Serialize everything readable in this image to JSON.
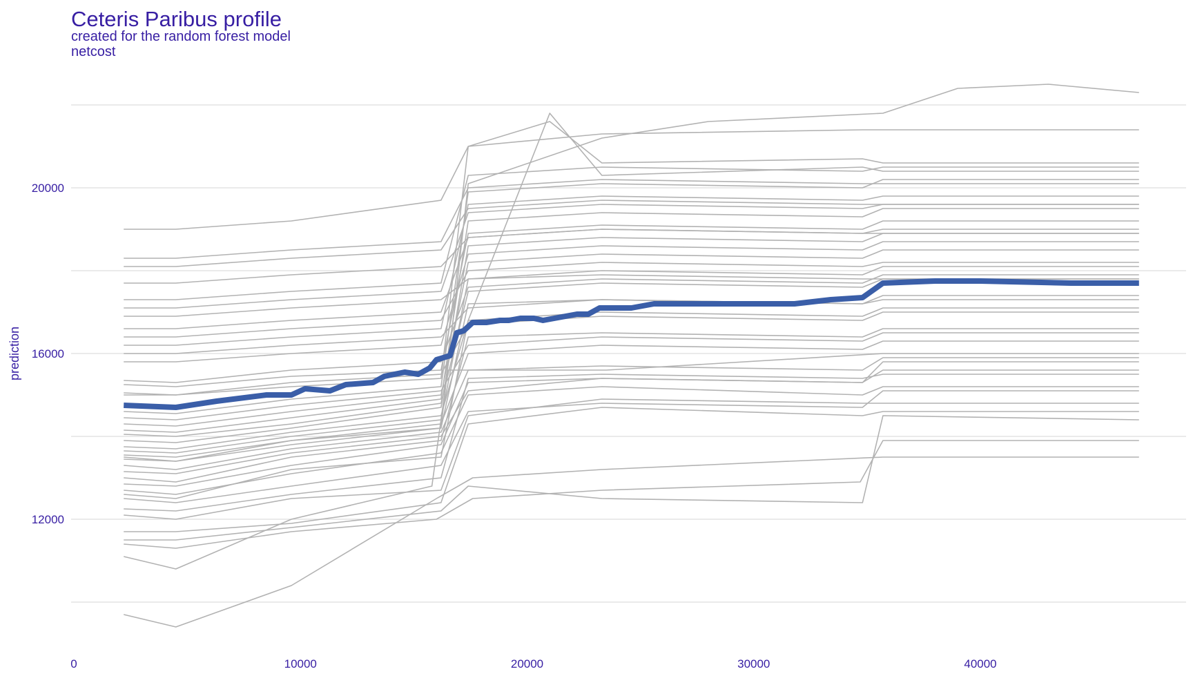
{
  "chart_data": {
    "type": "line",
    "title": "Ceteris Paribus profile",
    "subtitle_lines": [
      "created for the random forest model",
      "netcost"
    ],
    "xlabel": "",
    "ylabel": "prediction",
    "xlim": [
      0,
      49000
    ],
    "ylim": [
      9000,
      22500
    ],
    "x_ticks": [
      0,
      10000,
      20000,
      30000,
      40000
    ],
    "x_tick_labels": [
      "0",
      "10000",
      "20000",
      "30000",
      "40000"
    ],
    "y_ticks": [
      12000,
      16000,
      20000
    ],
    "y_tick_labels": [
      "12000",
      "16000",
      "20000"
    ],
    "y_grid_lines": [
      10000,
      12000,
      14000,
      16000,
      18000,
      20000,
      22000
    ],
    "grid": "horizontal",
    "profile_color": "#b2b2b2",
    "mean_color": "#3a5ea8",
    "text_color": "#371ea3",
    "mean_profile": {
      "x": [
        2200,
        4500,
        6300,
        8500,
        9600,
        10200,
        11300,
        12000,
        13200,
        13700,
        14600,
        15200,
        15700,
        16000,
        16600,
        16900,
        17200,
        17600,
        18200,
        18800,
        19200,
        19700,
        20300,
        20700,
        21200,
        21700,
        22200,
        22700,
        23200,
        23800,
        24600,
        25600,
        26400,
        28400,
        29600,
        31800,
        33400,
        34800,
        35700,
        38000,
        40000,
        44000,
        47000
      ],
      "y": [
        14750,
        14700,
        14850,
        15000,
        15000,
        15150,
        15100,
        15250,
        15300,
        15450,
        15550,
        15500,
        15650,
        15850,
        15950,
        16500,
        16550,
        16750,
        16750,
        16800,
        16800,
        16850,
        16850,
        16800,
        16850,
        16900,
        16950,
        16950,
        17100,
        17100,
        17100,
        17200,
        17200,
        17200,
        17200,
        17200,
        17300,
        17350,
        17700,
        17750,
        17750,
        17700,
        17700
      ]
    },
    "ice_profiles": [
      {
        "x": [
          2200,
          4500,
          9600,
          16000,
          17600,
          23300,
          35700,
          47000
        ],
        "y": [
          9700,
          9400,
          10400,
          12500,
          13000,
          13200,
          13500,
          13500
        ]
      },
      {
        "x": [
          2200,
          4500,
          9600,
          15800,
          16500,
          23500,
          35700,
          47000
        ],
        "y": [
          11100,
          10800,
          12000,
          12800,
          15600,
          15600,
          16000,
          16000
        ]
      },
      {
        "x": [
          2200,
          4500,
          9600,
          16000,
          17600,
          23300,
          34700,
          35700,
          47000
        ],
        "y": [
          11400,
          11300,
          11700,
          12000,
          12500,
          12700,
          12900,
          13900,
          13900
        ]
      },
      {
        "x": [
          2200,
          4500,
          9600,
          16200,
          17400,
          23300,
          34800,
          35700,
          47000
        ],
        "y": [
          11500,
          11500,
          11800,
          12200,
          12800,
          12500,
          12400,
          14500,
          14400
        ]
      },
      {
        "x": [
          2200,
          4500,
          9600,
          16200,
          17400,
          23300,
          34800,
          35700,
          47000
        ],
        "y": [
          11700,
          11700,
          11900,
          12400,
          14300,
          14700,
          14500,
          14600,
          14600
        ]
      },
      {
        "x": [
          2200,
          4500,
          9600,
          16200,
          17400,
          23300,
          34800,
          35700,
          47000
        ],
        "y": [
          12100,
          12000,
          12500,
          12700,
          14500,
          14900,
          14800,
          14800,
          14800
        ]
      },
      {
        "x": [
          2200,
          4500,
          9600,
          16200,
          17400,
          23300,
          34800,
          35700,
          47000
        ],
        "y": [
          12250,
          12200,
          12600,
          13000,
          15400,
          15500,
          15400,
          15500,
          15500
        ]
      },
      {
        "x": [
          2200,
          4500,
          9600,
          16200,
          17400,
          23300,
          34800,
          35700,
          47000
        ],
        "y": [
          12500,
          12400,
          12800,
          13300,
          14600,
          14800,
          14700,
          15100,
          15100
        ]
      },
      {
        "x": [
          2200,
          4500,
          9600,
          16200,
          17400,
          21000,
          23300,
          34800,
          35700,
          47000
        ],
        "y": [
          12600,
          12500,
          13200,
          13500,
          16800,
          21800,
          20300,
          20500,
          20400,
          20400
        ]
      },
      {
        "x": [
          2200,
          4500,
          9600,
          16200,
          17400,
          23300,
          34800,
          35700,
          47000
        ],
        "y": [
          12700,
          12600,
          13100,
          13600,
          15000,
          15200,
          15000,
          15200,
          15200
        ]
      },
      {
        "x": [
          2200,
          4500,
          9600,
          16200,
          17400,
          23300,
          34800,
          35700,
          47000
        ],
        "y": [
          12850,
          12800,
          13300,
          13800,
          15300,
          15400,
          15300,
          15600,
          15600
        ]
      },
      {
        "x": [
          2200,
          4500,
          9600,
          16200,
          17400,
          23300,
          34800,
          35700,
          47000
        ],
        "y": [
          13000,
          12900,
          13500,
          13900,
          16400,
          16500,
          16400,
          16600,
          16600
        ]
      },
      {
        "x": [
          2200,
          4500,
          9600,
          16200,
          17400,
          23300,
          34800,
          35700,
          47000
        ],
        "y": [
          13150,
          13100,
          13600,
          14000,
          15100,
          15400,
          15300,
          15800,
          15800
        ]
      },
      {
        "x": [
          2200,
          4500,
          9600,
          16200,
          17400,
          23300,
          34800,
          35700,
          47000
        ],
        "y": [
          13300,
          13200,
          13700,
          14100,
          15600,
          15700,
          15600,
          15900,
          15900
        ]
      },
      {
        "x": [
          2200,
          4500,
          9600,
          16200,
          17400,
          23300,
          34800,
          35700,
          47000
        ],
        "y": [
          13450,
          13400,
          13800,
          14200,
          17200,
          17300,
          17200,
          17400,
          17400
        ]
      },
      {
        "x": [
          2200,
          4500,
          9600,
          16200,
          17400,
          23300,
          34800,
          35700,
          47000
        ],
        "y": [
          13550,
          13500,
          13900,
          14300,
          16000,
          16200,
          16100,
          16300,
          16300
        ]
      },
      {
        "x": [
          2200,
          4500,
          9600,
          16200,
          17400,
          23300,
          34800,
          35700,
          47000
        ],
        "y": [
          13650,
          13600,
          14000,
          14400,
          17800,
          18000,
          17900,
          18100,
          18100
        ]
      },
      {
        "x": [
          2200,
          4500,
          9600,
          16200,
          17400,
          23300,
          34800,
          35700,
          47000
        ],
        "y": [
          13750,
          13700,
          14100,
          14500,
          16800,
          17000,
          16900,
          17100,
          17100
        ]
      },
      {
        "x": [
          2200,
          4500,
          9600,
          16200,
          17400,
          23300,
          34800,
          35700,
          47000
        ],
        "y": [
          13900,
          13850,
          14200,
          14700,
          18600,
          18800,
          18700,
          18900,
          18900
        ]
      },
      {
        "x": [
          2200,
          4500,
          9600,
          16200,
          17400,
          23300,
          34800,
          35700,
          47000
        ],
        "y": [
          14050,
          14000,
          14300,
          14800,
          17500,
          17700,
          17600,
          17800,
          17800
        ]
      },
      {
        "x": [
          2200,
          4500,
          9600,
          16200,
          17400,
          23300,
          34800,
          35700,
          47000
        ],
        "y": [
          14150,
          14100,
          14450,
          14900,
          19200,
          19400,
          19300,
          19500,
          19500
        ]
      },
      {
        "x": [
          2200,
          4500,
          9600,
          16200,
          17400,
          23300,
          34800,
          35700,
          47000
        ],
        "y": [
          14300,
          14250,
          14600,
          15000,
          18200,
          18400,
          18300,
          18500,
          18500
        ]
      },
      {
        "x": [
          2200,
          4500,
          9600,
          16200,
          17400,
          23300,
          34800,
          35700,
          47000
        ],
        "y": [
          14450,
          14400,
          14750,
          15100,
          16200,
          16400,
          16300,
          16500,
          16500
        ]
      },
      {
        "x": [
          2200,
          4500,
          9600,
          16200,
          17400,
          23300,
          34800,
          35700,
          47000
        ],
        "y": [
          14600,
          14550,
          14900,
          15200,
          19900,
          20100,
          20000,
          20200,
          20200
        ]
      },
      {
        "x": [
          2200,
          4500,
          9600,
          16200,
          17400,
          23300,
          34800,
          35700,
          47000
        ],
        "y": [
          15050,
          15000,
          15300,
          15500,
          16700,
          16900,
          16800,
          17000,
          17000
        ]
      },
      {
        "x": [
          2200,
          4500,
          9600,
          16200,
          17400,
          23300,
          34800,
          35700,
          47000
        ],
        "y": [
          15250,
          15200,
          15450,
          15600,
          18900,
          19100,
          19000,
          19200,
          19200
        ]
      },
      {
        "x": [
          2200,
          4500,
          9600,
          16200,
          17400,
          23300,
          34800,
          35700,
          47000
        ],
        "y": [
          15350,
          15300,
          15600,
          15800,
          17600,
          17800,
          17700,
          17900,
          17900
        ]
      },
      {
        "x": [
          2200,
          4500,
          9600,
          16200,
          17400,
          23300,
          34800,
          35700,
          47000
        ],
        "y": [
          15800,
          15800,
          16000,
          16200,
          18400,
          18600,
          18500,
          18700,
          18700
        ]
      },
      {
        "x": [
          2200,
          4500,
          9600,
          16200,
          17400,
          23300,
          34800,
          35700,
          47000
        ],
        "y": [
          16000,
          16000,
          16200,
          16400,
          17100,
          17300,
          17200,
          17300,
          17300
        ]
      },
      {
        "x": [
          2200,
          4500,
          9600,
          16200,
          17400,
          23300,
          34800,
          35700,
          47000
        ],
        "y": [
          16200,
          16200,
          16400,
          16600,
          19600,
          19800,
          19700,
          19800,
          19800
        ]
      },
      {
        "x": [
          2200,
          4500,
          9600,
          16200,
          17400,
          23300,
          34800,
          35700,
          47000
        ],
        "y": [
          16400,
          16400,
          16600,
          16800,
          18000,
          18200,
          18100,
          18200,
          18200
        ]
      },
      {
        "x": [
          2200,
          4500,
          9600,
          16200,
          17400,
          23300,
          34800,
          35700,
          47000
        ],
        "y": [
          16600,
          16600,
          16800,
          17000,
          18800,
          19000,
          18900,
          19000,
          19000
        ]
      },
      {
        "x": [
          2200,
          4500,
          9600,
          16200,
          17400,
          23300,
          34800,
          35700,
          47000
        ],
        "y": [
          16900,
          16900,
          17100,
          17300,
          17800,
          17900,
          17800,
          17800,
          17800
        ]
      },
      {
        "x": [
          2200,
          4500,
          9600,
          16200,
          17400,
          23300,
          34800,
          35700,
          47000
        ],
        "y": [
          17100,
          17100,
          17300,
          17500,
          19400,
          19600,
          19500,
          19600,
          19600
        ]
      },
      {
        "x": [
          2200,
          4500,
          9600,
          16200,
          17400,
          23300,
          34800,
          35700,
          47000
        ],
        "y": [
          17300,
          17300,
          17500,
          17700,
          20300,
          20500,
          20400,
          20500,
          20500
        ]
      },
      {
        "x": [
          2200,
          4500,
          9600,
          16200,
          17400,
          23300,
          34800,
          35700,
          47000
        ],
        "y": [
          17700,
          17700,
          17900,
          18100,
          18800,
          19000,
          18900,
          18900,
          18900
        ]
      },
      {
        "x": [
          2200,
          4500,
          9600,
          16200,
          17400,
          23300,
          34800,
          35700,
          47000
        ],
        "y": [
          18100,
          18100,
          18300,
          18500,
          19500,
          19700,
          19600,
          19600,
          19600
        ]
      },
      {
        "x": [
          2200,
          4500,
          9600,
          16200,
          17400,
          23300,
          34800,
          35700,
          47000
        ],
        "y": [
          18300,
          18300,
          18500,
          18700,
          20000,
          20200,
          20100,
          20100,
          20100
        ]
      },
      {
        "x": [
          2200,
          4500,
          9600,
          16200,
          17400,
          21000,
          23300,
          34800,
          35700,
          47000
        ],
        "y": [
          19000,
          19000,
          19200,
          19700,
          21000,
          21600,
          20600,
          20700,
          20600,
          20600
        ]
      },
      {
        "x": [
          2200,
          4500,
          9600,
          16200,
          17400,
          23300,
          34800,
          35700,
          47000
        ],
        "y": [
          15000,
          15000,
          15200,
          15400,
          21000,
          21300,
          21400,
          21400,
          21400
        ]
      },
      {
        "x": [
          2200,
          4500,
          9600,
          16200,
          17400,
          23300,
          28000,
          35700,
          39000,
          43000,
          47000
        ],
        "y": [
          13500,
          13400,
          13900,
          14200,
          20100,
          21200,
          21600,
          21800,
          22400,
          22500,
          22300
        ]
      }
    ]
  }
}
